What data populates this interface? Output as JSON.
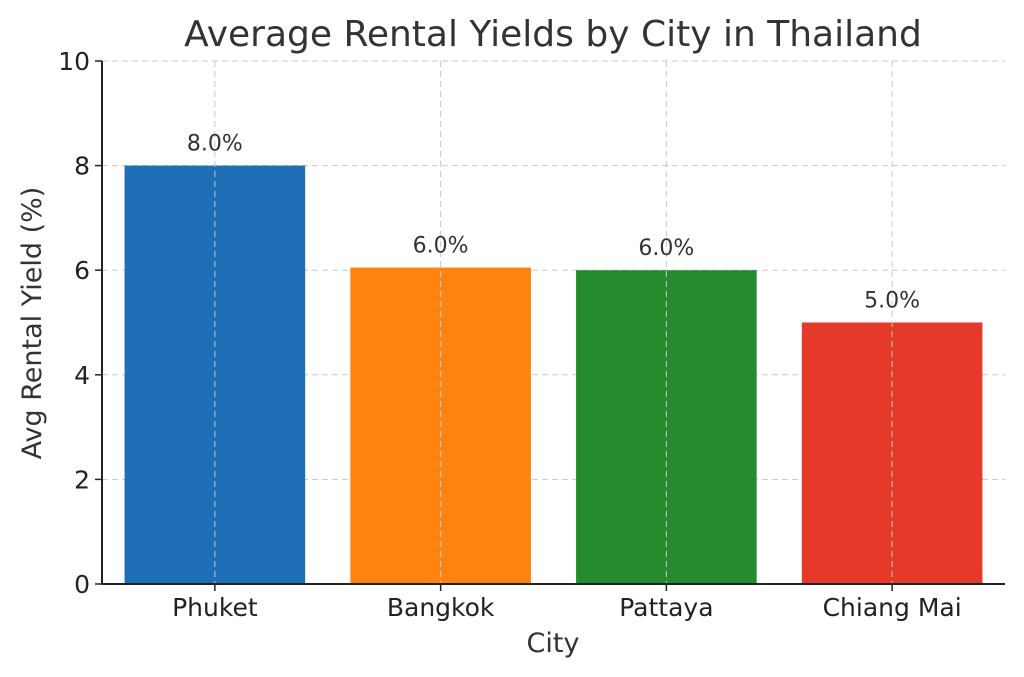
{
  "chart_data": {
    "type": "bar",
    "title": "Average Rental Yields by City in Thailand",
    "xlabel": "City",
    "ylabel": "Avg Rental Yield (%)",
    "categories": [
      "Phuket",
      "Bangkok",
      "Pattaya",
      "Chiang Mai"
    ],
    "values": [
      8.0,
      6.05,
      6.0,
      5.0
    ],
    "data_labels": [
      "8.0%",
      "6.0%",
      "6.0%",
      "5.0%"
    ],
    "colors": [
      "#1f6fb8",
      "#ff8310",
      "#258b2e",
      "#e53a2a"
    ],
    "ylim": [
      0,
      10
    ],
    "yticks": [
      0,
      2,
      4,
      6,
      8,
      10
    ],
    "grid": true
  }
}
